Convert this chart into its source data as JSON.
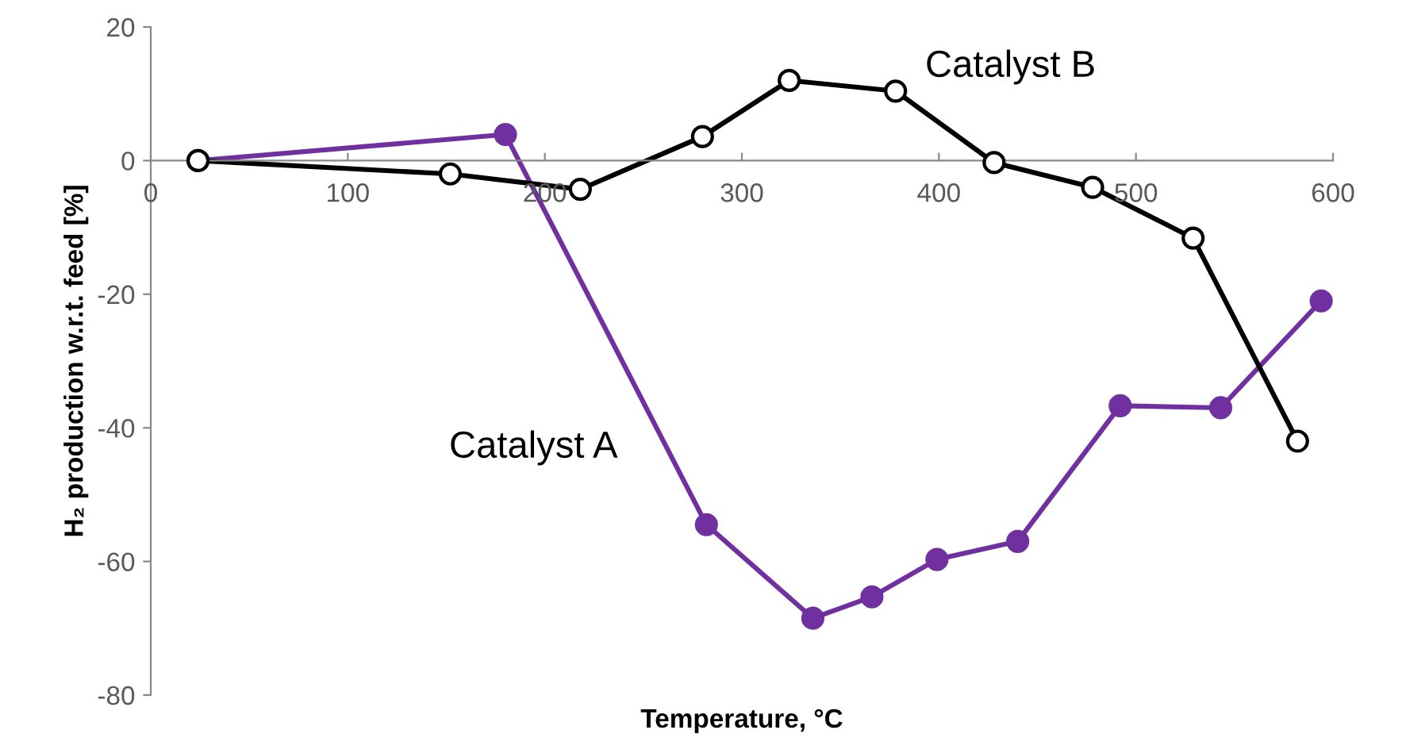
{
  "chart_data": {
    "type": "line",
    "xlabel": "Temperature, °C",
    "ylabel": "H₂ production w.r.t. feed [%]",
    "xlim": [
      0,
      600
    ],
    "xticks": [
      0,
      100,
      200,
      300,
      400,
      500,
      600
    ],
    "ylim": [
      -80,
      20
    ],
    "yticks": [
      -80,
      -60,
      -40,
      -20,
      0,
      20
    ],
    "grid": false,
    "legend": false,
    "series": [
      {
        "name": "Catalyst A",
        "color": "#7030a0",
        "marker": "circle",
        "x": [
          24,
          180,
          282,
          336,
          366,
          399,
          440,
          492,
          543,
          594
        ],
        "values": [
          0,
          3.9,
          -54.5,
          -68.5,
          -65.3,
          -59.7,
          -57,
          -36.7,
          -37,
          -21
        ]
      },
      {
        "name": "Catalyst B",
        "color": "#000000",
        "marker": "open circle",
        "x": [
          24,
          152,
          218,
          280,
          324,
          378,
          428,
          478,
          529,
          582
        ],
        "values": [
          0,
          -2,
          -4.3,
          3.6,
          12,
          10.4,
          -0.3,
          -4,
          -11.6,
          -42
        ]
      }
    ]
  }
}
